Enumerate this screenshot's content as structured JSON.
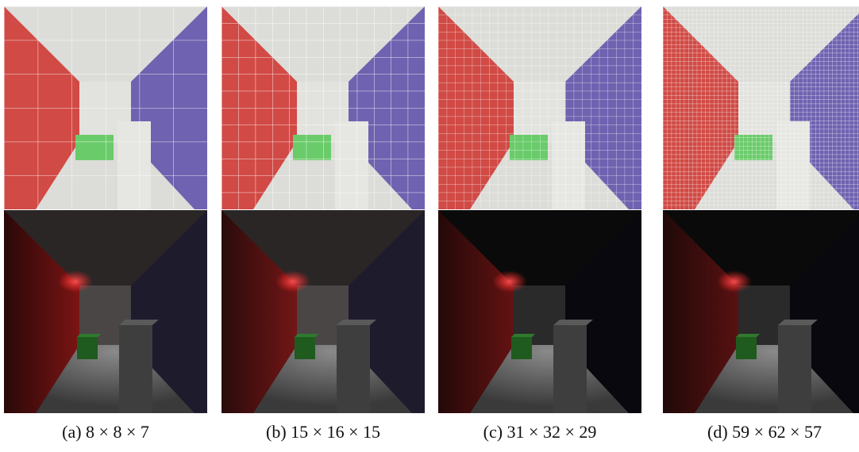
{
  "figure": {
    "panels": [
      {
        "caption": "(a) 8 × 8 × 7"
      },
      {
        "caption": "(b) 15 × 16 × 15"
      },
      {
        "caption": "(c) 31 × 32 × 29"
      },
      {
        "caption": "(d) 59 × 62 × 57"
      }
    ]
  }
}
